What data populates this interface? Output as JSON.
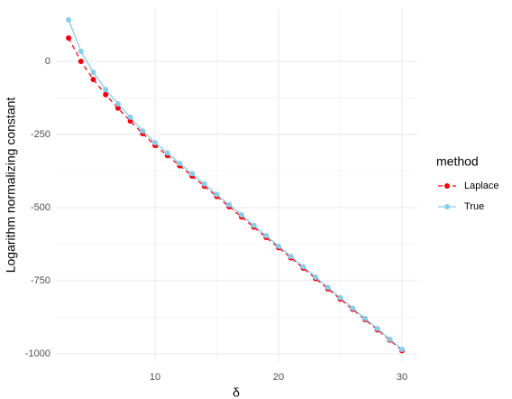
{
  "chart_data": {
    "type": "line",
    "x_label": "δ",
    "y_label": "Logarithm normalizing constant",
    "x": [
      3,
      4,
      5,
      6,
      7,
      8,
      9,
      10,
      11,
      12,
      13,
      14,
      15,
      16,
      17,
      18,
      19,
      20,
      21,
      22,
      23,
      24,
      25,
      26,
      27,
      28,
      29,
      30
    ],
    "series": [
      {
        "name": "Laplace",
        "color": "#f8000d",
        "dashed": true,
        "values": [
          80,
          0,
          -62,
          -114,
          -160,
          -204,
          -247,
          -287,
          -322,
          -357,
          -392,
          -427,
          -462,
          -497,
          -532,
          -567,
          -602,
          -637,
          -672,
          -707,
          -743,
          -778,
          -813,
          -848,
          -883,
          -918,
          -953,
          -989
        ]
      },
      {
        "name": "True",
        "color": "#87ceeb",
        "dashed": false,
        "values": [
          142,
          34,
          -37,
          -96,
          -145,
          -191,
          -238,
          -278,
          -313,
          -349,
          -384,
          -419,
          -455,
          -490,
          -525,
          -561,
          -596,
          -632,
          -667,
          -702,
          -738,
          -773,
          -808,
          -844,
          -879,
          -914,
          -950,
          -985
        ]
      }
    ],
    "xlim": [
      1.97,
      31.24
    ],
    "xticks": [
      10,
      20,
      30
    ],
    "ylim": [
      -1025,
      179
    ],
    "yticks": [
      0,
      -250,
      -500,
      -750,
      -1000
    ],
    "grid": true,
    "legend_title": "method",
    "legend_position": "right"
  }
}
